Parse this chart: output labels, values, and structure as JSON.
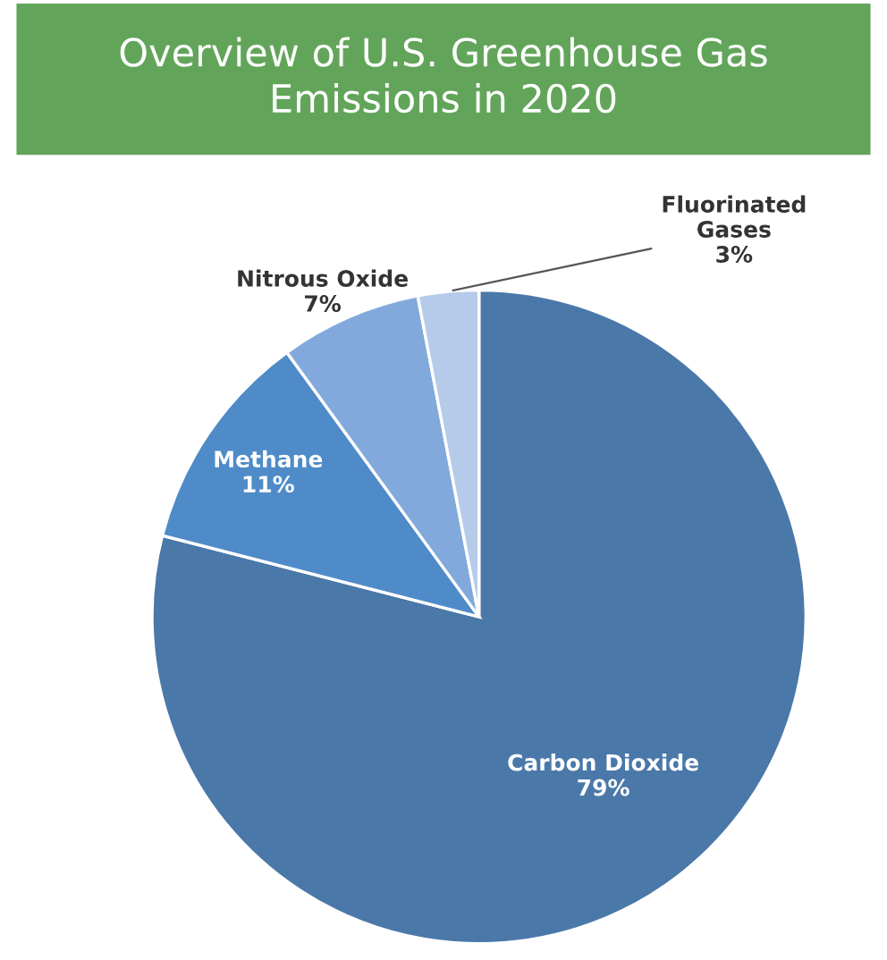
{
  "chart_data": {
    "type": "pie",
    "title": "Overview of U.S. Greenhouse Gas\nEmissions in 2020",
    "categories": [
      "Carbon Dioxide",
      "Methane",
      "Nitrous Oxide",
      "Fluorinated\nGases"
    ],
    "values": [
      79,
      11,
      7,
      3
    ],
    "colors": [
      "#4a78a8",
      "#4f8bc8",
      "#82a9db",
      "#b5cbe9"
    ],
    "value_labels": [
      "79%",
      "11%",
      "7%",
      "3%"
    ]
  }
}
